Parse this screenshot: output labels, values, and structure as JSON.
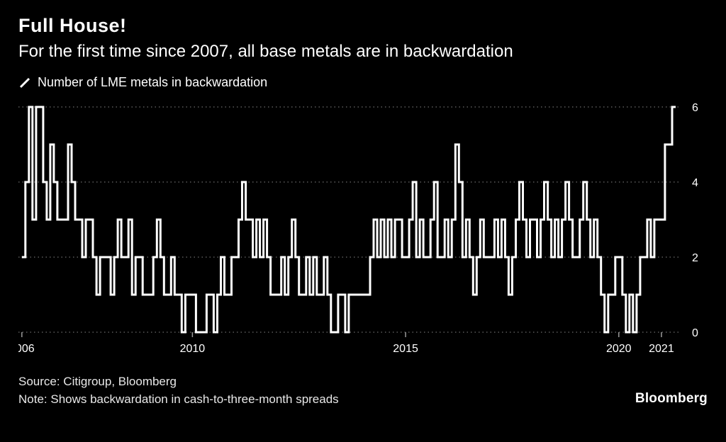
{
  "header": {
    "title": "Full House!",
    "subtitle": "For the first time since 2007, all base metals are in backwardation"
  },
  "legend": {
    "label": "Number of LME metals in backwardation"
  },
  "colors": {
    "background": "#000000",
    "line": "#ffffff",
    "grid": "#5a5a5a",
    "text": "#ffffff"
  },
  "chart_data": {
    "type": "line",
    "style": "step",
    "title": "Full House!",
    "subtitle": "For the first time since 2007, all base metals are in backwardation",
    "series_name": "Number of LME metals in backwardation",
    "xlabel": "",
    "ylabel": "",
    "start_year": 2006,
    "points_per_year": 12,
    "values": [
      2,
      4,
      6,
      3,
      6,
      6,
      4,
      3,
      5,
      4,
      3,
      3,
      3,
      5,
      4,
      3,
      3,
      2,
      3,
      3,
      2,
      1,
      2,
      2,
      2,
      1,
      2,
      3,
      2,
      2,
      3,
      1,
      2,
      2,
      1,
      1,
      1,
      2,
      3,
      2,
      1,
      1,
      2,
      1,
      1,
      0,
      1,
      1,
      1,
      0,
      0,
      0,
      1,
      1,
      0,
      1,
      2,
      1,
      1,
      2,
      2,
      3,
      4,
      3,
      3,
      2,
      3,
      2,
      3,
      2,
      1,
      1,
      1,
      2,
      1,
      2,
      3,
      2,
      1,
      1,
      2,
      1,
      2,
      1,
      1,
      2,
      1,
      0,
      0,
      1,
      1,
      0,
      1,
      1,
      1,
      1,
      1,
      1,
      2,
      3,
      2,
      3,
      2,
      3,
      2,
      3,
      3,
      2,
      2,
      3,
      4,
      2,
      3,
      2,
      2,
      3,
      4,
      2,
      2,
      3,
      2,
      3,
      5,
      4,
      2,
      3,
      2,
      1,
      2,
      3,
      2,
      2,
      2,
      3,
      2,
      3,
      2,
      1,
      2,
      3,
      4,
      3,
      2,
      3,
      3,
      2,
      3,
      4,
      3,
      2,
      3,
      2,
      3,
      4,
      3,
      2,
      2,
      3,
      4,
      3,
      2,
      3,
      2,
      1,
      0,
      1,
      1,
      2,
      2,
      1,
      0,
      1,
      0,
      1,
      2,
      2,
      3,
      2,
      3,
      3,
      3,
      5,
      5,
      6
    ],
    "x_ticks": [
      2006,
      2010,
      2015,
      2020,
      2021
    ],
    "y_ticks": [
      0,
      2,
      4,
      6
    ],
    "x_range": [
      2005.92,
      2021.45
    ],
    "y_range": [
      0,
      6
    ],
    "grid": "dotted-horizontal",
    "legend_position": "top-left"
  },
  "footer": {
    "source": "Source: Citigroup, Bloomberg",
    "note": "Note: Shows backwardation in cash-to-three-month spreads",
    "logo": "Bloomberg"
  }
}
